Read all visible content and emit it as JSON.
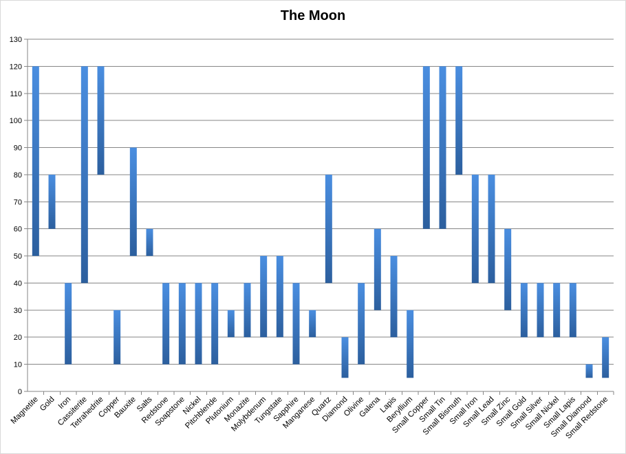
{
  "chart_data": {
    "type": "bar",
    "subtype": "floating-range",
    "title": "The Moon",
    "xlabel": "",
    "ylabel": "",
    "ylim": [
      0,
      130
    ],
    "ytick_step": 10,
    "grid": true,
    "legend": "none",
    "bar_color": "#3f7fcf",
    "bar_color_dark": "#2c5f9e",
    "grid_color": "#868686",
    "categories": [
      "Magnetite",
      "Gold",
      "Iron",
      "Cassiterite",
      "Tetrahedrite",
      "Copper",
      "Bauxite",
      "Salts",
      "Redstone",
      "Soapstone",
      "Nickel",
      "Pitchblende",
      "Plutonium",
      "Monazite",
      "Molybdenum",
      "Tungstate",
      "Sapphire",
      "Manganese",
      "Quartz",
      "Diamond",
      "Olivine",
      "Galena",
      "Lapis",
      "Beryllium",
      "Small Copper",
      "Small Tin",
      "Small Bismuth",
      "Small Iron",
      "Small Lead",
      "Small Zinc",
      "Small Gold",
      "Small Silver",
      "Small Nickel",
      "Small Lapis",
      "Small Diamond",
      "Small Redstone"
    ],
    "low": [
      50,
      60,
      10,
      40,
      80,
      10,
      50,
      50,
      10,
      10,
      10,
      10,
      20,
      20,
      20,
      20,
      10,
      20,
      40,
      5,
      10,
      30,
      20,
      5,
      60,
      60,
      80,
      40,
      40,
      30,
      20,
      20,
      20,
      20,
      5,
      5
    ],
    "high": [
      120,
      80,
      40,
      120,
      120,
      30,
      90,
      60,
      40,
      40,
      40,
      40,
      30,
      40,
      50,
      50,
      40,
      30,
      80,
      20,
      40,
      60,
      50,
      30,
      120,
      120,
      120,
      80,
      80,
      60,
      40,
      40,
      40,
      40,
      10,
      20
    ]
  }
}
